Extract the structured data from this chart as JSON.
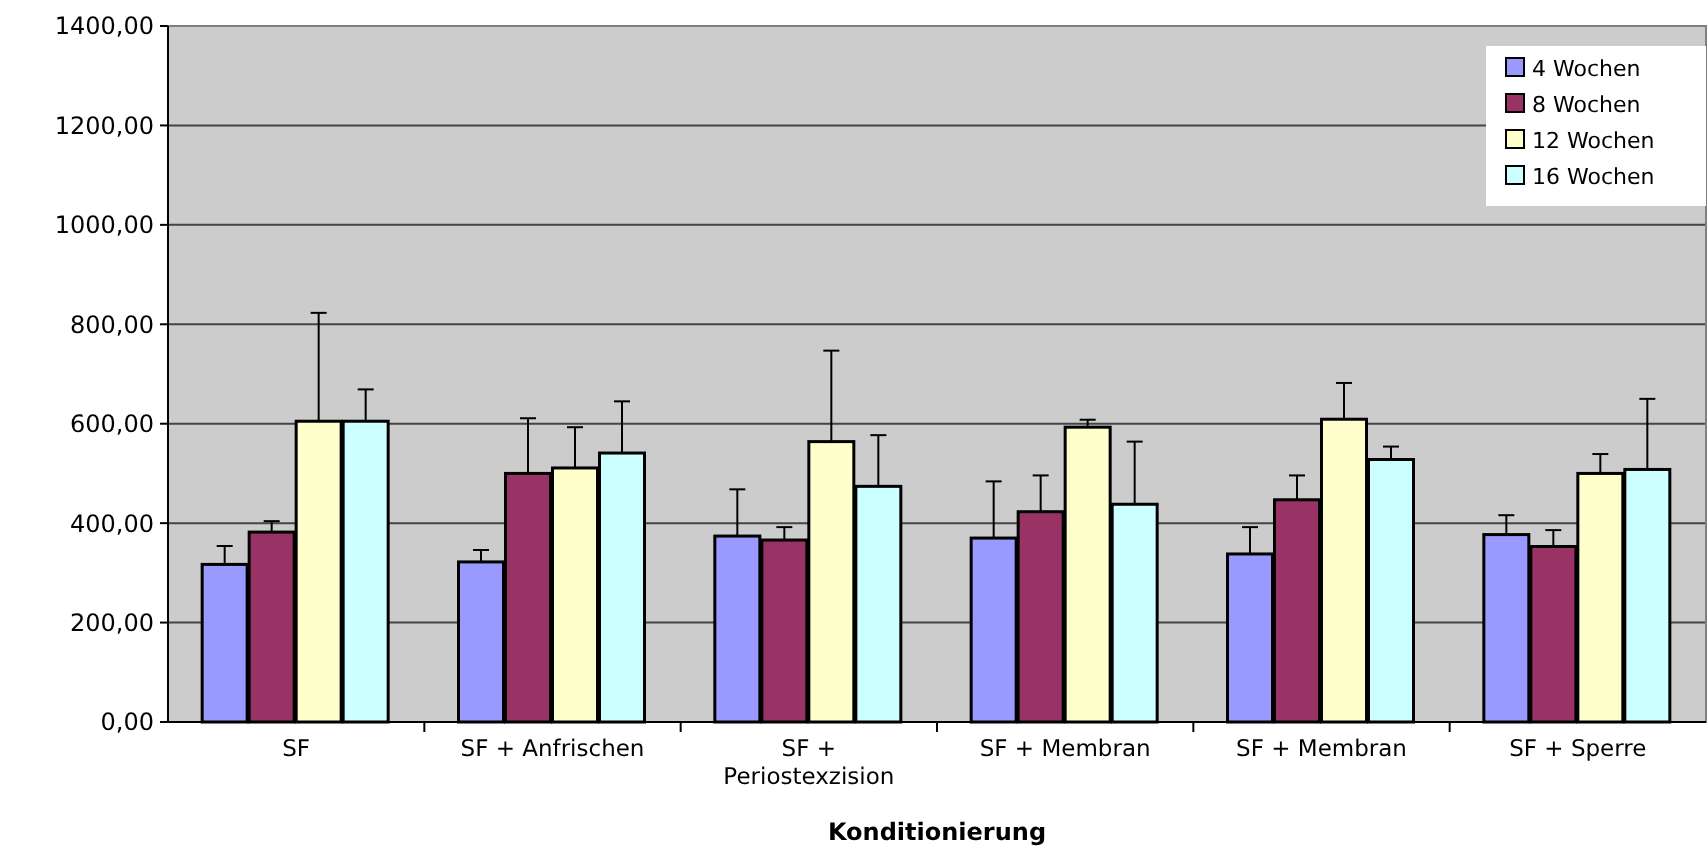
{
  "chart_data": {
    "type": "bar",
    "xlabel": "Konditionierung",
    "categories": [
      "SF",
      "SF +  Anfrischen",
      "SF + Periostexzision",
      "SF + Membran",
      "SF + Membran",
      "SF + Sperre"
    ],
    "series": [
      {
        "name": "4 Wochen",
        "color": "#9999ff",
        "values": [
          317,
          322,
          374,
          370,
          338,
          377
        ],
        "errors": [
          [
            317,
            354
          ],
          [
            322,
            346
          ],
          [
            374,
            468
          ],
          [
            370,
            484
          ],
          [
            338,
            392
          ],
          [
            377,
            416
          ]
        ]
      },
      {
        "name": "8 Wochen",
        "color": "#993366",
        "values": [
          382,
          500,
          366,
          423,
          447,
          353
        ],
        "errors": [
          [
            382,
            404
          ],
          [
            500,
            611
          ],
          [
            366,
            392
          ],
          [
            423,
            496
          ],
          [
            447,
            496
          ],
          [
            353,
            386
          ]
        ]
      },
      {
        "name": "12 Wochen",
        "color": "#ffffcc",
        "values": [
          605,
          511,
          564,
          593,
          609,
          500
        ],
        "errors": [
          [
            605,
            823
          ],
          [
            511,
            593
          ],
          [
            564,
            747
          ],
          [
            593,
            608
          ],
          [
            609,
            682
          ],
          [
            500,
            539
          ]
        ]
      },
      {
        "name": "16 Wochen",
        "color": "#ccffff",
        "values": [
          605,
          541,
          474,
          438,
          528,
          508
        ],
        "errors": [
          [
            605,
            669
          ],
          [
            541,
            645
          ],
          [
            474,
            577
          ],
          [
            438,
            564
          ],
          [
            528,
            554
          ],
          [
            508,
            650
          ]
        ]
      }
    ],
    "ylim": [
      0,
      1400
    ],
    "yticks": [
      {
        "value": 0,
        "label": "0,00"
      },
      {
        "value": 200,
        "label": "200,00"
      },
      {
        "value": 400,
        "label": "400,00"
      },
      {
        "value": 600,
        "label": "600,00"
      },
      {
        "value": 800,
        "label": "800,00"
      },
      {
        "value": 1000,
        "label": "1000,00"
      },
      {
        "value": 1200,
        "label": "1200,00"
      },
      {
        "value": 1400,
        "label": "1400,00"
      }
    ],
    "grid": "y",
    "legend": "top right"
  }
}
